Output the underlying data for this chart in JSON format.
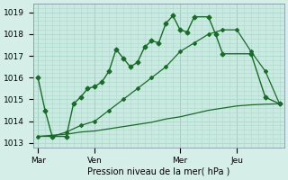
{
  "xlabel": "Pression niveau de la mer( hPa )",
  "bg_color": "#d6eee8",
  "plot_bg_color": "#c8eae0",
  "grid_color": "#b0d8cc",
  "line_color": "#1a6b2a",
  "ylim": [
    1012.8,
    1019.4
  ],
  "yticks": [
    1013,
    1014,
    1015,
    1016,
    1017,
    1018,
    1019
  ],
  "day_labels": [
    "Mar",
    "Ven",
    "Mer",
    "Jeu"
  ],
  "day_positions": [
    0,
    24,
    60,
    84
  ],
  "vline_positions": [
    0,
    24,
    60,
    84
  ],
  "xlim": [
    -2,
    104
  ],
  "line1_x": [
    0,
    3,
    6,
    12,
    15,
    18,
    21,
    24,
    27,
    30,
    33,
    36,
    39,
    42,
    45,
    48,
    51,
    54,
    57,
    60,
    63,
    66,
    72,
    75,
    78,
    90,
    96,
    102
  ],
  "line1_y": [
    1016.0,
    1014.5,
    1013.3,
    1013.3,
    1014.8,
    1015.1,
    1015.5,
    1015.6,
    1015.8,
    1016.3,
    1017.3,
    1016.9,
    1016.5,
    1016.7,
    1017.4,
    1017.7,
    1017.6,
    1018.5,
    1018.85,
    1018.2,
    1018.1,
    1018.8,
    1018.8,
    1018.0,
    1017.1,
    1017.1,
    1015.1,
    1014.8
  ],
  "line2_x": [
    0,
    6,
    12,
    18,
    24,
    30,
    36,
    42,
    48,
    54,
    60,
    66,
    72,
    78,
    84,
    90,
    96,
    102
  ],
  "line2_y": [
    1013.3,
    1013.3,
    1013.5,
    1013.8,
    1014.0,
    1014.5,
    1015.0,
    1015.5,
    1016.0,
    1016.5,
    1017.2,
    1017.6,
    1018.0,
    1018.2,
    1018.2,
    1017.2,
    1016.3,
    1014.8
  ],
  "line3_x": [
    0,
    6,
    12,
    18,
    24,
    30,
    36,
    42,
    48,
    54,
    60,
    66,
    72,
    78,
    84,
    90,
    96,
    102
  ],
  "line3_y": [
    1013.3,
    1013.35,
    1013.4,
    1013.5,
    1013.55,
    1013.65,
    1013.75,
    1013.85,
    1013.95,
    1014.1,
    1014.2,
    1014.35,
    1014.5,
    1014.6,
    1014.7,
    1014.75,
    1014.78,
    1014.8
  ]
}
